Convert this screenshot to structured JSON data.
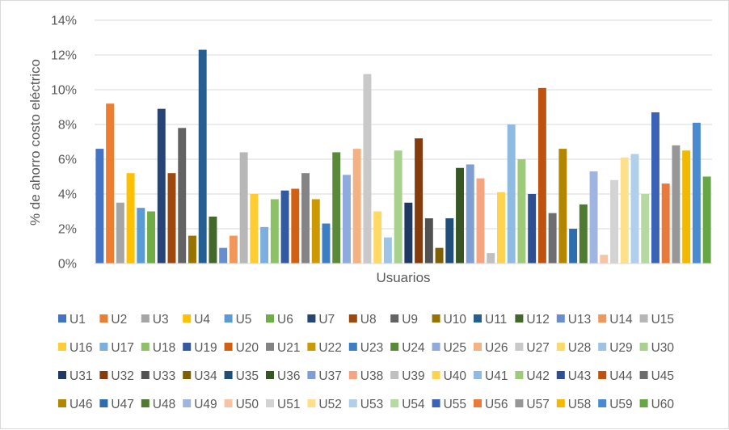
{
  "chart_data": {
    "type": "bar",
    "title": "",
    "xlabel": "Usuarios",
    "ylabel": "% de ahorro costo eléctrico",
    "ylim": [
      0,
      14
    ],
    "yticks": [
      "0%",
      "2%",
      "4%",
      "6%",
      "8%",
      "10%",
      "12%",
      "14%"
    ],
    "ytick_values": [
      0,
      2,
      4,
      6,
      8,
      10,
      12,
      14
    ],
    "grid": true,
    "legend_position": "bottom",
    "categories": [
      "U1",
      "U2",
      "U3",
      "U4",
      "U5",
      "U6",
      "U7",
      "U8",
      "U9",
      "U10",
      "U11",
      "U12",
      "U13",
      "U14",
      "U15",
      "U16",
      "U17",
      "U18",
      "U19",
      "U20",
      "U21",
      "U22",
      "U23",
      "U24",
      "U25",
      "U26",
      "U27",
      "U28",
      "U29",
      "U30",
      "U31",
      "U32",
      "U33",
      "U34",
      "U35",
      "U36",
      "U37",
      "U38",
      "U39",
      "U40",
      "U41",
      "U42",
      "U43",
      "U44",
      "U45",
      "U46",
      "U47",
      "U48",
      "U49",
      "U50",
      "U51",
      "U52",
      "U53",
      "U54",
      "U55",
      "U56",
      "U57",
      "U58",
      "U59",
      "U60"
    ],
    "values": [
      6.6,
      9.2,
      3.5,
      5.2,
      3.2,
      3.0,
      8.9,
      5.2,
      7.8,
      1.6,
      12.3,
      2.7,
      0.9,
      1.6,
      6.4,
      4.0,
      2.1,
      3.7,
      4.2,
      4.3,
      5.2,
      3.7,
      2.3,
      6.4,
      5.1,
      6.6,
      10.9,
      3.0,
      1.5,
      6.5,
      3.5,
      7.2,
      2.6,
      0.9,
      2.6,
      5.5,
      5.7,
      4.9,
      0.6,
      4.1,
      8.0,
      6.0,
      4.0,
      10.1,
      2.9,
      6.6,
      2.0,
      3.4,
      5.3,
      0.5,
      4.8,
      6.1,
      6.3,
      4.0,
      8.7,
      4.6,
      6.8,
      6.5,
      8.1,
      5.0
    ],
    "colors": [
      "#4472c4",
      "#ed7d31",
      "#a5a5a5",
      "#ffc000",
      "#5b9bd5",
      "#70ad47",
      "#264478",
      "#9e480e",
      "#636363",
      "#997300",
      "#255e91",
      "#43682b",
      "#698ed0",
      "#f1975a",
      "#b7b7b7",
      "#ffcd33",
      "#7cafdd",
      "#8cc168",
      "#335aa1",
      "#d26012",
      "#848484",
      "#cc9a00",
      "#3c7dc4",
      "#5a8a39",
      "#8faadc",
      "#f4b183",
      "#c9c9c9",
      "#ffd966",
      "#9dc3e6",
      "#a9d18e",
      "#203864",
      "#843c0c",
      "#525252",
      "#7f6000",
      "#1f4e79",
      "#375623",
      "#7f9fd4",
      "#f4a582",
      "#c0c0c0",
      "#ffd34f",
      "#8fbbe2",
      "#9dcb7a",
      "#2e4f94",
      "#c0520f",
      "#6e6e6e",
      "#b38600",
      "#2f6eae",
      "#4e7a32",
      "#9fb5e0",
      "#f6c4a3",
      "#d3d3d3",
      "#ffe08a",
      "#b0cfea",
      "#b5d9a0",
      "#3a63b8",
      "#ea7a3c",
      "#979797",
      "#f2b900",
      "#4a8ad0",
      "#66a644"
    ]
  }
}
